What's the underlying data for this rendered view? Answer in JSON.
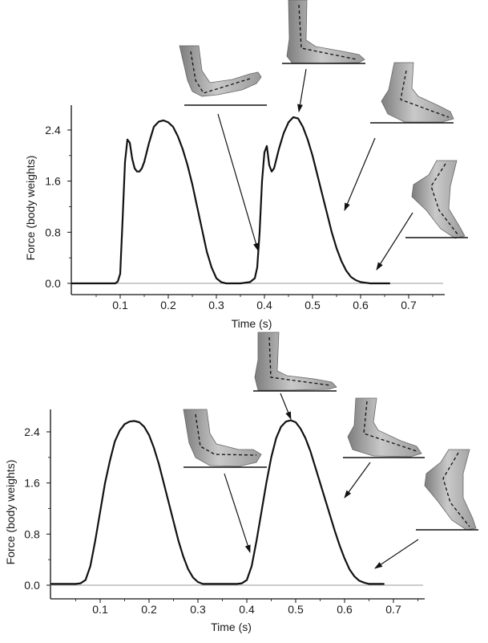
{
  "chart_data": [
    {
      "type": "line",
      "title": "",
      "xlabel": "Time (s)",
      "ylabel": "Force (body weights)",
      "xlim": [
        0,
        0.76
      ],
      "ylim": [
        0,
        2.7
      ],
      "xticks": [
        0.1,
        0.2,
        0.3,
        0.4,
        0.5,
        0.6,
        0.7
      ],
      "xtick_labels": [
        "0.1",
        "0.2",
        "0.3",
        "0.4",
        "0.5",
        "0.6",
        "0.7"
      ],
      "yticks": [
        0.0,
        0.8,
        1.6,
        2.4
      ],
      "ytick_labels": [
        "0.0",
        "0.8",
        "1.6",
        "2.4"
      ],
      "grid": false,
      "series": [
        {
          "x": [
            0.0,
            0.05,
            0.09,
            0.095,
            0.1,
            0.105,
            0.11,
            0.115,
            0.12,
            0.125,
            0.13,
            0.135,
            0.14,
            0.145,
            0.15,
            0.16,
            0.17,
            0.18,
            0.19,
            0.2,
            0.21,
            0.22,
            0.23,
            0.24,
            0.25,
            0.26,
            0.27,
            0.28,
            0.29,
            0.3,
            0.31,
            0.32,
            0.33,
            0.35,
            0.37,
            0.38,
            0.385,
            0.39,
            0.395,
            0.4,
            0.405,
            0.41,
            0.415,
            0.42,
            0.425,
            0.43,
            0.44,
            0.45,
            0.46,
            0.47,
            0.48,
            0.49,
            0.5,
            0.51,
            0.52,
            0.53,
            0.54,
            0.55,
            0.56,
            0.57,
            0.58,
            0.59,
            0.6,
            0.61,
            0.62,
            0.63,
            0.64,
            0.65,
            0.66
          ],
          "y": [
            0.0,
            0.0,
            0.0,
            0.03,
            0.15,
            1.0,
            1.9,
            2.25,
            2.2,
            1.95,
            1.8,
            1.75,
            1.75,
            1.8,
            1.9,
            2.2,
            2.45,
            2.53,
            2.55,
            2.52,
            2.45,
            2.3,
            2.1,
            1.85,
            1.55,
            1.2,
            0.85,
            0.5,
            0.25,
            0.08,
            0.02,
            0.0,
            0.0,
            0.0,
            0.02,
            0.08,
            0.25,
            0.8,
            1.6,
            2.05,
            2.15,
            1.85,
            1.75,
            1.8,
            1.95,
            2.1,
            2.35,
            2.52,
            2.6,
            2.58,
            2.45,
            2.25,
            2.0,
            1.7,
            1.4,
            1.1,
            0.8,
            0.55,
            0.35,
            0.2,
            0.1,
            0.05,
            0.02,
            0.01,
            0.0,
            0.0,
            0.0,
            0.0,
            0.0
          ]
        }
      ]
    },
    {
      "type": "line",
      "title": "",
      "xlabel": "Time (s)",
      "ylabel": "Force (body weights)",
      "xlim": [
        0,
        0.76
      ],
      "ylim": [
        0,
        2.7
      ],
      "xticks": [
        0.1,
        0.2,
        0.3,
        0.4,
        0.5,
        0.6,
        0.7
      ],
      "xtick_labels": [
        "0.1",
        "0.2",
        "0.3",
        "0.4",
        "0.5",
        "0.6",
        "0.7"
      ],
      "yticks": [
        0.0,
        0.8,
        1.6,
        2.4
      ],
      "ytick_labels": [
        "0.0",
        "0.8",
        "1.6",
        "2.4"
      ],
      "grid": false,
      "series": [
        {
          "x": [
            0.0,
            0.05,
            0.06,
            0.07,
            0.08,
            0.09,
            0.1,
            0.11,
            0.12,
            0.13,
            0.14,
            0.15,
            0.16,
            0.17,
            0.18,
            0.19,
            0.2,
            0.21,
            0.22,
            0.23,
            0.24,
            0.25,
            0.26,
            0.27,
            0.28,
            0.29,
            0.3,
            0.31,
            0.32,
            0.33,
            0.35,
            0.38,
            0.39,
            0.4,
            0.41,
            0.42,
            0.43,
            0.44,
            0.45,
            0.46,
            0.47,
            0.48,
            0.49,
            0.5,
            0.51,
            0.52,
            0.53,
            0.54,
            0.55,
            0.56,
            0.57,
            0.58,
            0.59,
            0.6,
            0.61,
            0.62,
            0.63,
            0.64,
            0.65,
            0.66,
            0.67,
            0.68
          ],
          "y": [
            0.02,
            0.02,
            0.03,
            0.08,
            0.3,
            0.7,
            1.15,
            1.6,
            1.95,
            2.25,
            2.42,
            2.52,
            2.56,
            2.57,
            2.55,
            2.48,
            2.35,
            2.15,
            1.9,
            1.6,
            1.3,
            1.0,
            0.7,
            0.45,
            0.25,
            0.12,
            0.05,
            0.02,
            0.02,
            0.02,
            0.02,
            0.02,
            0.03,
            0.08,
            0.3,
            0.7,
            1.15,
            1.6,
            2.0,
            2.3,
            2.48,
            2.56,
            2.58,
            2.55,
            2.45,
            2.3,
            2.1,
            1.85,
            1.6,
            1.35,
            1.1,
            0.85,
            0.62,
            0.42,
            0.25,
            0.14,
            0.07,
            0.04,
            0.02,
            0.02,
            0.02,
            0.02
          ]
        }
      ]
    }
  ]
}
